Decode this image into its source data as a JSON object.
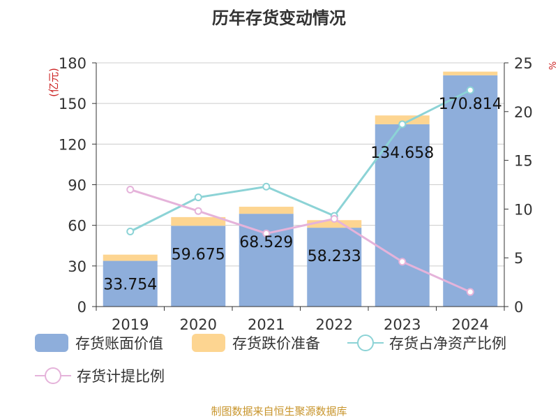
{
  "chart_data": {
    "type": "bar",
    "title": "历年存货变动情况",
    "ylabel_left": "(亿元)",
    "ylabel_right": "%",
    "categories": [
      "2019",
      "2020",
      "2021",
      "2022",
      "2023",
      "2024"
    ],
    "ylim_left": [
      0,
      180
    ],
    "yticks_left": [
      "0",
      "30",
      "60",
      "90",
      "120",
      "150",
      "180"
    ],
    "ylim_right": [
      0,
      25
    ],
    "yticks_right": [
      "0",
      "5",
      "10",
      "15",
      "20",
      "25"
    ],
    "bar_series": [
      {
        "name": "存货账面价值",
        "color": "#8eaedb",
        "values": [
          33.754,
          59.675,
          68.529,
          58.233,
          134.658,
          170.814
        ]
      },
      {
        "name": "存货跌价准备",
        "color": "#fdd591",
        "values": [
          4.6,
          6.4,
          5.2,
          5.6,
          6.5,
          2.7
        ]
      }
    ],
    "line_series": [
      {
        "name": "存货占净资产比例",
        "color": "#8cd3d6",
        "values": [
          7.7,
          11.2,
          12.3,
          9.3,
          18.7,
          22.2
        ]
      },
      {
        "name": "存货计提比例",
        "color": "#e5b3da",
        "values": [
          12.0,
          9.8,
          7.5,
          9.0,
          4.6,
          1.5
        ]
      }
    ],
    "data_labels": [
      "33.754",
      "59.675",
      "68.529",
      "58.233",
      "134.658",
      "170.814"
    ],
    "grid": true,
    "legend_position": "bottom"
  },
  "footer": {
    "source": "制图数据来自恒生聚源数据库"
  }
}
